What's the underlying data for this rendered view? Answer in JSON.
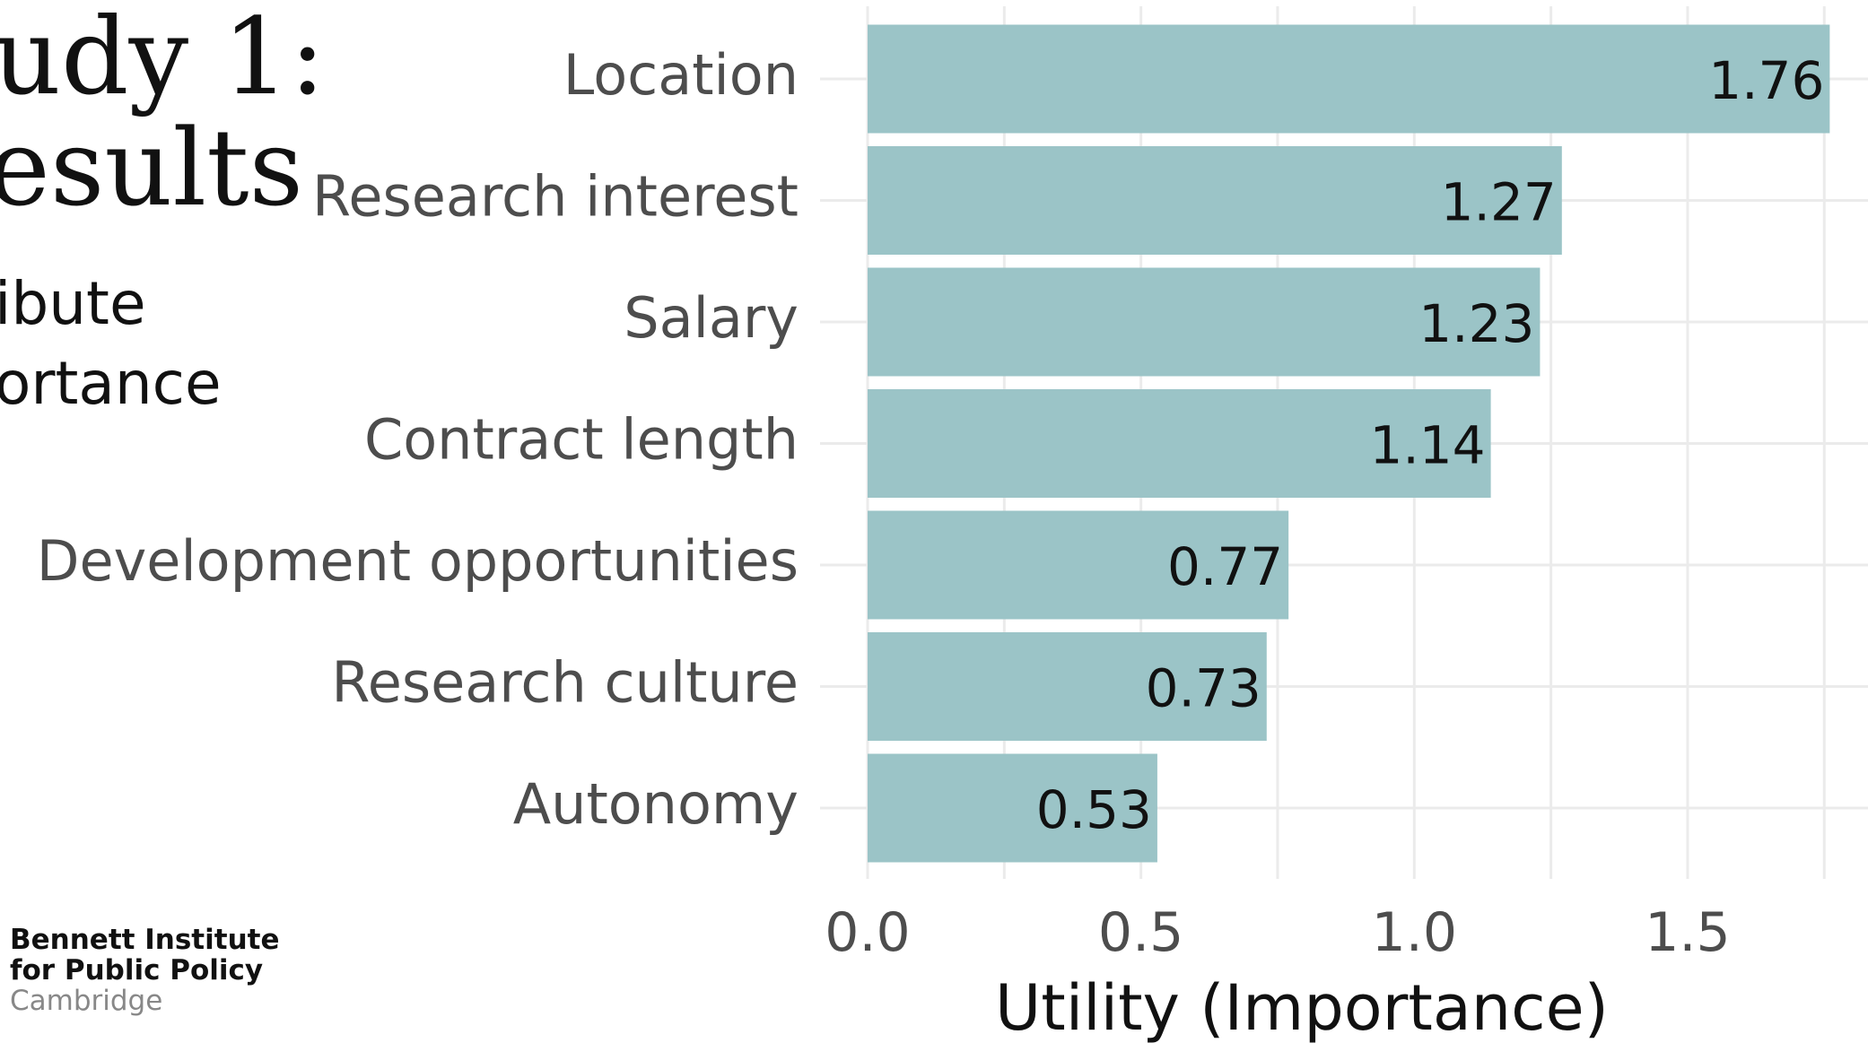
{
  "slide": {
    "title_lines": [
      "udy 1:",
      "esults"
    ],
    "subtitle_lines": [
      "ibute",
      "ortance"
    ],
    "logo": [
      "Bennett Institute",
      "for Public Policy",
      "Cambridge"
    ]
  },
  "chart_data": {
    "type": "bar",
    "orientation": "horizontal",
    "categories": [
      "Location",
      "Research interest",
      "Salary",
      "Contract length",
      "Development opportunities",
      "Research culture",
      "Autonomy"
    ],
    "values": [
      1.76,
      1.27,
      1.23,
      1.14,
      0.77,
      0.73,
      0.53
    ],
    "color": "#9bc4c7",
    "xlabel": "Utility (Importance)",
    "xlim": [
      0,
      1.83
    ],
    "xticks": [
      {
        "value": 0,
        "label": "0.0"
      },
      0.5,
      {
        "value": 1,
        "label": "1.0"
      },
      1.5
    ],
    "xminor": [
      0.25,
      0.75,
      1.25,
      1.75
    ],
    "grid": true
  }
}
